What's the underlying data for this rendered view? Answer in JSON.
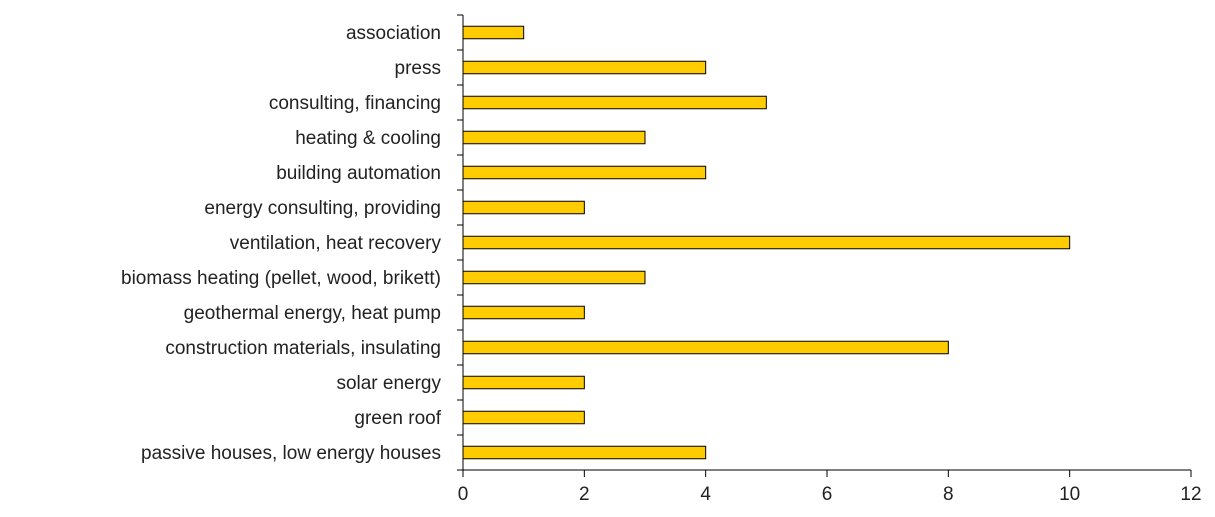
{
  "chart_data": {
    "type": "bar",
    "orientation": "horizontal",
    "categories": [
      "association",
      "press",
      "consulting, financing",
      "heating & cooling",
      "building automation",
      "energy consulting, providing",
      "ventilation, heat recovery",
      "biomass heating (pellet, wood, brikett)",
      "geothermal energy, heat pump",
      "construction materials, insulating",
      "solar energy",
      "green roof",
      "passive houses, low energy houses"
    ],
    "values": [
      1,
      4,
      5,
      3,
      4,
      2,
      10,
      3,
      2,
      8,
      2,
      2,
      4
    ],
    "xlim": [
      0,
      12
    ],
    "xticks": [
      "0",
      "2",
      "4",
      "6",
      "8",
      "10",
      "12"
    ],
    "title": "",
    "xlabel": "",
    "ylabel": "",
    "grid": false,
    "legend": "none",
    "bar_color": "#FFCC00",
    "bar_edge_color": "#000000"
  }
}
